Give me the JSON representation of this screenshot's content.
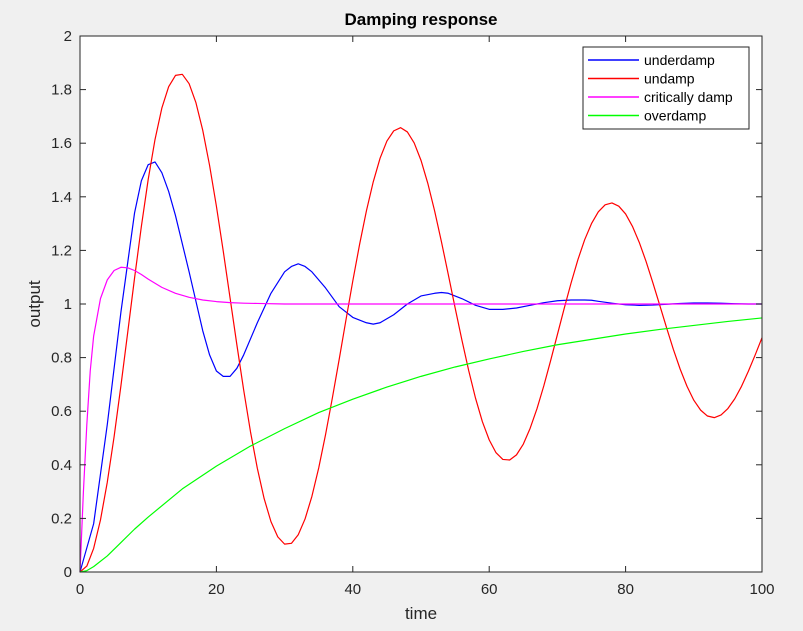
{
  "chart_data": {
    "type": "line",
    "title": "Damping response",
    "xlabel": "time",
    "ylabel": "output",
    "xlim": [
      0,
      100
    ],
    "ylim": [
      0,
      2
    ],
    "xticks": [
      0,
      20,
      40,
      60,
      80,
      100
    ],
    "xtick_labels": [
      "0",
      "20",
      "40",
      "60",
      "80",
      "100"
    ],
    "yticks": [
      0,
      0.2,
      0.4,
      0.6,
      0.8,
      1,
      1.2,
      1.4,
      1.6,
      1.8,
      2
    ],
    "ytick_labels": [
      "0",
      "0.2",
      "0.4",
      "0.6",
      "0.8",
      "1",
      "1.2",
      "1.4",
      "1.6",
      "1.8",
      "2"
    ],
    "grid": false,
    "legend_position": "top-right",
    "series": [
      {
        "name": "underdamp",
        "color": "#0000ff",
        "x": [
          0,
          2,
          4,
          6,
          8,
          9,
          10,
          11,
          12,
          13,
          14,
          16,
          18,
          19,
          20,
          21,
          22,
          23,
          24,
          26,
          28,
          30,
          31,
          32,
          33,
          34,
          36,
          38,
          40,
          42,
          43,
          44,
          46,
          48,
          50,
          52,
          53,
          54,
          56,
          58,
          60,
          62,
          64,
          66,
          68,
          70,
          72,
          74,
          75,
          76,
          78,
          80,
          82,
          84,
          86,
          88,
          90,
          92,
          94,
          96,
          98,
          100
        ],
        "y": [
          0,
          0.18,
          0.55,
          0.97,
          1.34,
          1.46,
          1.52,
          1.53,
          1.49,
          1.42,
          1.33,
          1.12,
          0.9,
          0.81,
          0.75,
          0.73,
          0.73,
          0.76,
          0.81,
          0.93,
          1.04,
          1.12,
          1.14,
          1.15,
          1.14,
          1.12,
          1.06,
          0.99,
          0.95,
          0.93,
          0.925,
          0.93,
          0.96,
          1.0,
          1.03,
          1.04,
          1.043,
          1.04,
          1.02,
          0.995,
          0.98,
          0.98,
          0.985,
          0.995,
          1.005,
          1.012,
          1.015,
          1.015,
          1.014,
          1.01,
          1.003,
          0.997,
          0.995,
          0.996,
          0.999,
          1.002,
          1.004,
          1.004,
          1.003,
          1.001,
          1.0,
          1.0
        ]
      },
      {
        "name": "undamp",
        "color": "#ff0000",
        "x": [
          0,
          1,
          2,
          3,
          4,
          5,
          6,
          7,
          8,
          9,
          10,
          11,
          12,
          13,
          14,
          15,
          16,
          17,
          18,
          19,
          20,
          21,
          22,
          23,
          24,
          25,
          26,
          27,
          28,
          29,
          30,
          31,
          32,
          33,
          34,
          35,
          36,
          37,
          38,
          39,
          40,
          41,
          42,
          43,
          44,
          45,
          46,
          47,
          48,
          49,
          50,
          51,
          52,
          53,
          54,
          55,
          56,
          57,
          58,
          59,
          60,
          61,
          62,
          63,
          64,
          65,
          66,
          67,
          68,
          69,
          70,
          71,
          72,
          73,
          74,
          75,
          76,
          77,
          78,
          79,
          80,
          81,
          82,
          83,
          84,
          85,
          86,
          87,
          88,
          89,
          90,
          91,
          92,
          93,
          94,
          95,
          96,
          97,
          98,
          99,
          100
        ],
        "y": [
          0,
          0.022,
          0.088,
          0.194,
          0.335,
          0.505,
          0.695,
          0.895,
          1.097,
          1.29,
          1.465,
          1.614,
          1.731,
          1.811,
          1.853,
          1.857,
          1.822,
          1.751,
          1.648,
          1.517,
          1.365,
          1.198,
          1.023,
          0.848,
          0.679,
          0.523,
          0.387,
          0.274,
          0.188,
          0.131,
          0.104,
          0.107,
          0.139,
          0.198,
          0.282,
          0.388,
          0.512,
          0.649,
          0.793,
          0.941,
          1.086,
          1.223,
          1.348,
          1.456,
          1.544,
          1.608,
          1.646,
          1.658,
          1.642,
          1.601,
          1.536,
          1.45,
          1.347,
          1.232,
          1.11,
          0.986,
          0.865,
          0.751,
          0.648,
          0.561,
          0.493,
          0.445,
          0.42,
          0.418,
          0.437,
          0.477,
          0.536,
          0.609,
          0.694,
          0.788,
          0.886,
          0.984,
          1.078,
          1.165,
          1.24,
          1.3,
          1.344,
          1.37,
          1.377,
          1.365,
          1.336,
          1.29,
          1.23,
          1.159,
          1.079,
          0.996,
          0.912,
          0.831,
          0.757,
          0.693,
          0.641,
          0.604,
          0.582,
          0.576,
          0.586,
          0.61,
          0.646,
          0.693,
          0.749,
          0.81,
          0.874
        ]
      },
      {
        "name": "critically damp",
        "color": "#ff00ff",
        "x": [
          0,
          0.5,
          1,
          1.5,
          2,
          3,
          4,
          5,
          6,
          7,
          8,
          9,
          10,
          12,
          14,
          16,
          18,
          20,
          22,
          24,
          26,
          30,
          40,
          50,
          60,
          70,
          80,
          90,
          100
        ],
        "y": [
          0,
          0.3,
          0.55,
          0.75,
          0.88,
          1.02,
          1.09,
          1.125,
          1.137,
          1.135,
          1.125,
          1.11,
          1.093,
          1.062,
          1.04,
          1.025,
          1.015,
          1.009,
          1.005,
          1.003,
          1.002,
          1.0,
          1.0,
          1.0,
          1.0,
          1.0,
          1.0,
          1.0,
          1.0
        ]
      },
      {
        "name": "overdamp",
        "color": "#00ff00",
        "x": [
          0,
          1,
          2,
          4,
          6,
          8,
          10,
          15,
          20,
          25,
          30,
          35,
          40,
          45,
          50,
          55,
          60,
          65,
          70,
          75,
          80,
          85,
          90,
          95,
          100
        ],
        "y": [
          0,
          0.005,
          0.02,
          0.06,
          0.11,
          0.16,
          0.205,
          0.31,
          0.395,
          0.47,
          0.535,
          0.595,
          0.645,
          0.69,
          0.73,
          0.765,
          0.795,
          0.823,
          0.848,
          0.868,
          0.888,
          0.905,
          0.92,
          0.935,
          0.948
        ]
      }
    ]
  }
}
